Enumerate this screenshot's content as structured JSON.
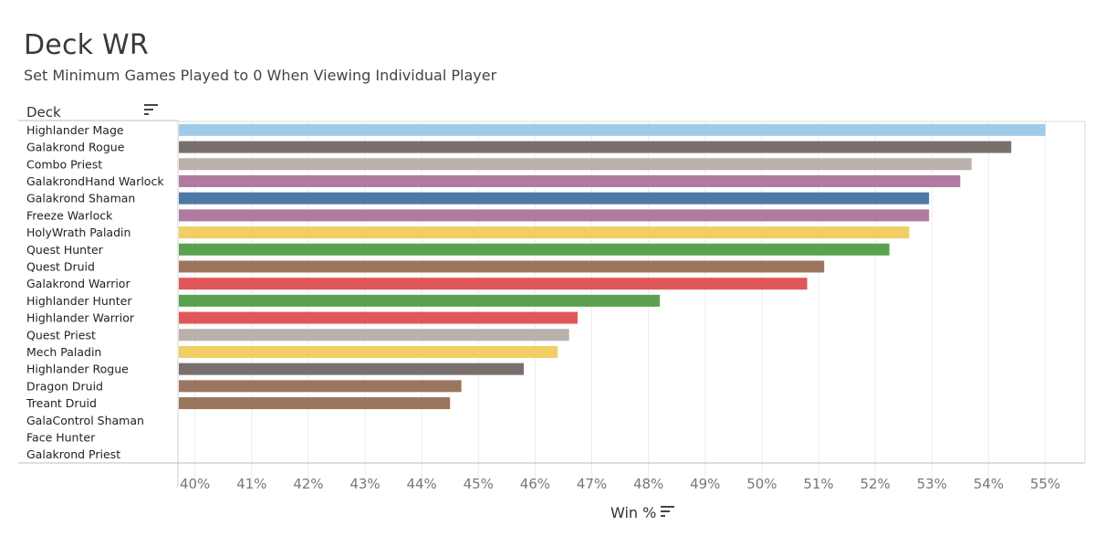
{
  "header": {
    "title": "Deck WR",
    "subtitle": "Set Minimum Games Played to 0 When Viewing Individual Player",
    "row_header": "Deck"
  },
  "axis": {
    "xlabel": "Win %"
  },
  "chart_data": {
    "type": "bar",
    "orientation": "horizontal",
    "title": "Deck WR",
    "xlabel": "Win %",
    "ylabel": "Deck",
    "xlim": [
      39.7,
      55.7
    ],
    "x_ticks": [
      40,
      41,
      42,
      43,
      44,
      45,
      46,
      47,
      48,
      49,
      50,
      51,
      52,
      53,
      54,
      55
    ],
    "x_tick_labels": [
      "40%",
      "41%",
      "42%",
      "43%",
      "44%",
      "45%",
      "46%",
      "47%",
      "48%",
      "49%",
      "50%",
      "51%",
      "52%",
      "53%",
      "54%",
      "55%"
    ],
    "grid": true,
    "categories": [
      "Highlander Mage",
      "Galakrond Rogue",
      "Combo Priest",
      "GalakrondHand Warlock",
      "Galakrond Shaman",
      "Freeze Warlock",
      "HolyWrath Paladin",
      "Quest Hunter",
      "Quest Druid",
      "Galakrond Warrior",
      "Highlander Hunter",
      "Highlander Warrior",
      "Quest Priest",
      "Mech Paladin",
      "Highlander Rogue",
      "Dragon Druid",
      "Treant Druid",
      "GalaControl Shaman",
      "Face Hunter",
      "Galakrond Priest"
    ],
    "values": [
      55.0,
      54.4,
      53.7,
      53.5,
      52.95,
      52.95,
      52.6,
      52.25,
      51.1,
      50.8,
      48.2,
      46.75,
      46.6,
      46.4,
      45.8,
      44.7,
      44.5,
      null,
      null,
      null
    ],
    "colors": [
      "#a0cbe8",
      "#79706e",
      "#bab0ac",
      "#b07aa1",
      "#4e79a7",
      "#b07aa1",
      "#f1ce63",
      "#59a14f",
      "#9c755f",
      "#e15759",
      "#59a14f",
      "#e15759",
      "#bab0ac",
      "#f1ce63",
      "#79706e",
      "#9c755f",
      "#9c755f",
      "#4e79a7",
      "#59a14f",
      "#bab0ac"
    ]
  }
}
